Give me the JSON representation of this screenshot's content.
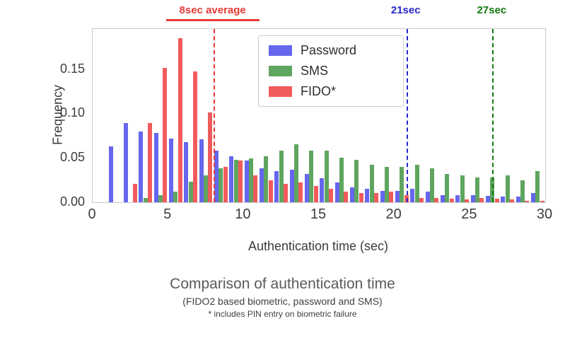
{
  "chart_data": {
    "type": "bar",
    "title": "Comparison of authentication time",
    "subtitle": "(FIDO2 based biometric, password and SMS)",
    "footnote": "* includes PIN entry on biometric failure",
    "xlabel": "Authentication time (sec)",
    "ylabel": "Frequency",
    "xlim": [
      0,
      30
    ],
    "ylim": [
      0,
      0.195
    ],
    "xticks": [
      0,
      5,
      10,
      15,
      20,
      25,
      30
    ],
    "yticks": [
      "0.00",
      "0.05",
      "0.10",
      "0.15"
    ],
    "ytick_values": [
      0,
      0.05,
      0.1,
      0.15
    ],
    "grid": false,
    "legend_position": "upper-center-left",
    "bin_centers": [
      1.5,
      2.5,
      3.5,
      4.5,
      5.5,
      6.5,
      7.5,
      8.5,
      9.5,
      10.5,
      11.5,
      12.5,
      13.5,
      14.5,
      15.5,
      16.5,
      17.5,
      18.5,
      19.5,
      20.5,
      21.5,
      22.5,
      23.5,
      24.5,
      25.5,
      26.5,
      27.5,
      28.5,
      29.5
    ],
    "series": [
      {
        "name": "Password",
        "color": "#6666ee",
        "values": [
          0.063,
          0.089,
          0.08,
          0.078,
          0.072,
          0.068,
          0.071,
          0.058,
          0.052,
          0.047,
          0.038,
          0.035,
          0.037,
          0.032,
          0.027,
          0.022,
          0.017,
          0.015,
          0.013,
          0.013,
          0.015,
          0.012,
          0.008,
          0.008,
          0.008,
          0.007,
          0.006,
          0.006,
          0.01
        ]
      },
      {
        "name": "SMS",
        "color": "#5fa55f",
        "values": [
          0,
          0,
          0.005,
          0.008,
          0.012,
          0.023,
          0.03,
          0.038,
          0.048,
          0.049,
          0.052,
          0.058,
          0.065,
          0.058,
          0.058,
          0.05,
          0.048,
          0.042,
          0.04,
          0.04,
          0.042,
          0.038,
          0.032,
          0.03,
          0.028,
          0.028,
          0.03,
          0.025,
          0.035
        ]
      },
      {
        "name": "FIDO*",
        "color": "#f25b5b",
        "values": [
          0,
          0.021,
          0.089,
          0.151,
          0.185,
          0.147,
          0.101,
          0.04,
          0.047,
          0.03,
          0.025,
          0.021,
          0.022,
          0.018,
          0.015,
          0.012,
          0.01,
          0.01,
          0.012,
          0.008,
          0.005,
          0.005,
          0.004,
          0.003,
          0.005,
          0.004,
          0.003,
          0.002,
          0.002
        ]
      }
    ],
    "annotations": [
      {
        "label": "8sec average",
        "x": 8.0,
        "color": "#e53935",
        "underline": true
      },
      {
        "label": "21sec",
        "x": 20.8,
        "color": "#2727cc",
        "underline": false
      },
      {
        "label": "27sec",
        "x": 26.5,
        "color": "#117a11",
        "underline": false
      }
    ]
  }
}
